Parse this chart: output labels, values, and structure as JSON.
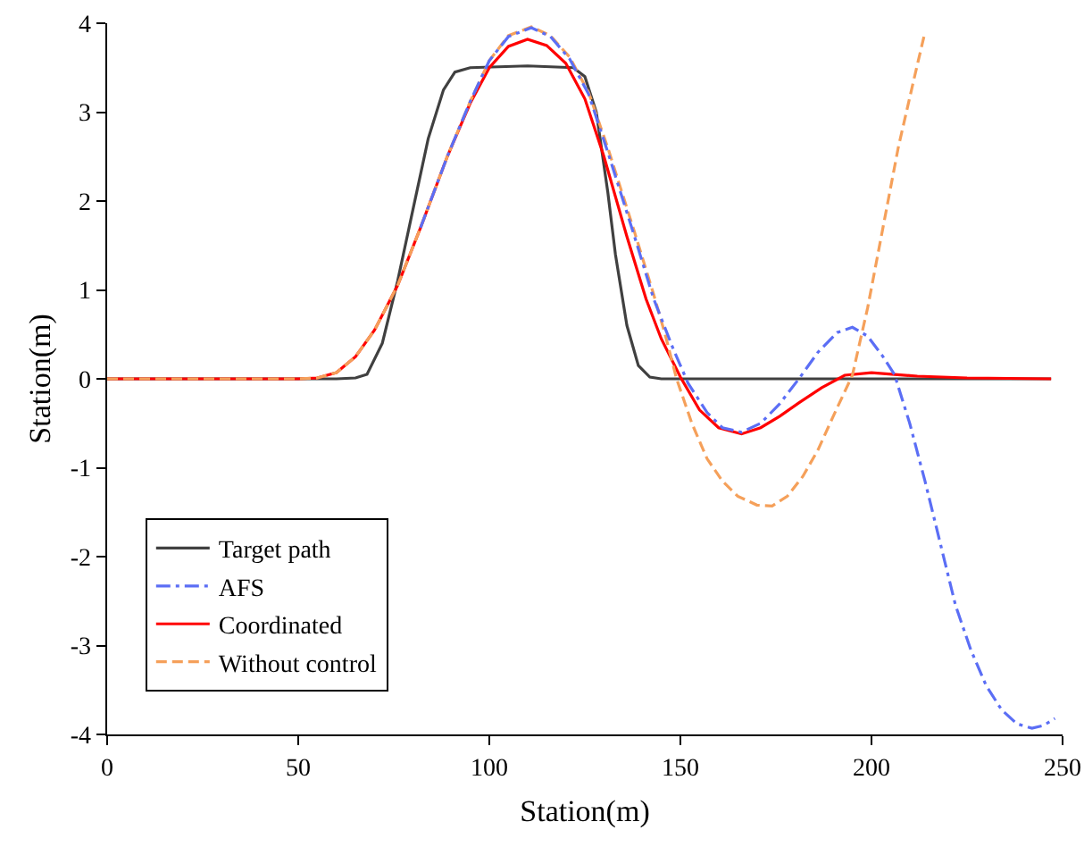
{
  "chart_data": {
    "type": "line",
    "xlabel": "Station(m)",
    "ylabel": "Station(m)",
    "xlim": [
      0,
      250
    ],
    "ylim": [
      -4,
      4
    ],
    "xticks": [
      0,
      50,
      100,
      150,
      200,
      250
    ],
    "yticks": [
      -4,
      -3,
      -2,
      -1,
      0,
      1,
      2,
      3,
      4
    ],
    "grid": false,
    "legend": "bottom left",
    "marker": "none",
    "series": [
      {
        "name": "Target path",
        "color": "#404040",
        "line_style": "solid",
        "x": [
          0,
          60,
          65,
          68,
          72,
          76,
          80,
          84,
          88,
          91,
          95,
          110,
          122,
          125,
          128,
          131,
          133,
          136,
          139,
          142,
          145,
          247
        ],
        "values": [
          0,
          0,
          0.01,
          0.05,
          0.4,
          1.1,
          1.9,
          2.7,
          3.25,
          3.45,
          3.5,
          3.52,
          3.5,
          3.4,
          3.0,
          2.1,
          1.4,
          0.6,
          0.15,
          0.02,
          0,
          0
        ]
      },
      {
        "name": "AFS",
        "color": "#5b6ef5",
        "line_style": "dashdot",
        "x": [
          82,
          89,
          95,
          100,
          105,
          111,
          116,
          121,
          126,
          131,
          138,
          143,
          148,
          152,
          157,
          161,
          166,
          171,
          176,
          181,
          186,
          191,
          195,
          199,
          203,
          206,
          210,
          214,
          218,
          222,
          226,
          230,
          234,
          238,
          242,
          245,
          248
        ],
        "values": [
          1.7,
          2.5,
          3.12,
          3.58,
          3.85,
          3.95,
          3.85,
          3.6,
          3.2,
          2.55,
          1.6,
          0.9,
          0.35,
          -0.05,
          -0.38,
          -0.55,
          -0.6,
          -0.5,
          -0.28,
          0,
          0.3,
          0.52,
          0.58,
          0.48,
          0.25,
          0.05,
          -0.5,
          -1.15,
          -1.85,
          -2.55,
          -3.05,
          -3.45,
          -3.72,
          -3.88,
          -3.93,
          -3.9,
          -3.82
        ]
      },
      {
        "name": "Coordinated",
        "color": "#ff0000",
        "line_style": "solid",
        "x": [
          0,
          50,
          55,
          60,
          65,
          70,
          76,
          82,
          89,
          95,
          100,
          105,
          110,
          115,
          120,
          125,
          130,
          136,
          141,
          145,
          150,
          155,
          160,
          166,
          171,
          176,
          181,
          187,
          193,
          200,
          212,
          225,
          247
        ],
        "values": [
          0,
          0,
          0.01,
          0.07,
          0.25,
          0.55,
          1.05,
          1.7,
          2.5,
          3.1,
          3.5,
          3.74,
          3.82,
          3.75,
          3.55,
          3.15,
          2.5,
          1.6,
          0.9,
          0.45,
          0.02,
          -0.35,
          -0.55,
          -0.62,
          -0.55,
          -0.42,
          -0.27,
          -0.1,
          0.04,
          0.07,
          0.03,
          0.01,
          0
        ]
      },
      {
        "name": "Without control",
        "color": "#f5a05a",
        "line_style": "dashed",
        "x": [
          0,
          50,
          55,
          60,
          65,
          70,
          76,
          82,
          89,
          95,
          100,
          105,
          111,
          116,
          121,
          126,
          131,
          138,
          143,
          146,
          149,
          153,
          157,
          161,
          165,
          170,
          174,
          178,
          182,
          186,
          190,
          195,
          199,
          203,
          207,
          211,
          214
        ],
        "values": [
          0,
          0,
          0.01,
          0.07,
          0.25,
          0.55,
          1.05,
          1.7,
          2.5,
          3.12,
          3.58,
          3.86,
          3.96,
          3.86,
          3.62,
          3.22,
          2.6,
          1.65,
          0.95,
          0.5,
          0,
          -0.5,
          -0.9,
          -1.15,
          -1.32,
          -1.42,
          -1.43,
          -1.32,
          -1.1,
          -0.8,
          -0.42,
          0.04,
          0.8,
          1.7,
          2.6,
          3.35,
          3.9
        ]
      }
    ]
  }
}
